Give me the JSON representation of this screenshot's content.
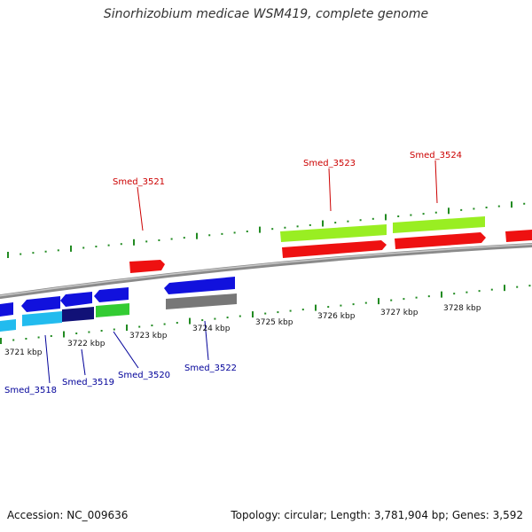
{
  "title": "Sinorhizobium medicae WSM419, complete genome",
  "accession_text": "Accession: NC_009636",
  "stats_text": "Topology: circular; Length: 3,781,904 bp; Genes: 3,592",
  "colors": {
    "label_forward": "#cc0000",
    "label_reverse": "#000099",
    "tick": "#228b22",
    "backbone": "#888888"
  },
  "kbp_labels": [
    "3721 kbp",
    "3722 kbp",
    "3723 kbp",
    "3724 kbp",
    "3725 kbp",
    "3726 kbp",
    "3727 kbp",
    "3728 kbp"
  ],
  "gene_labels": {
    "forward": [
      "Smed_3521",
      "Smed_3523",
      "Smed_3524"
    ],
    "reverse": [
      "Smed_3518",
      "Smed_3519",
      "Smed_3520",
      "Smed_3522"
    ]
  }
}
